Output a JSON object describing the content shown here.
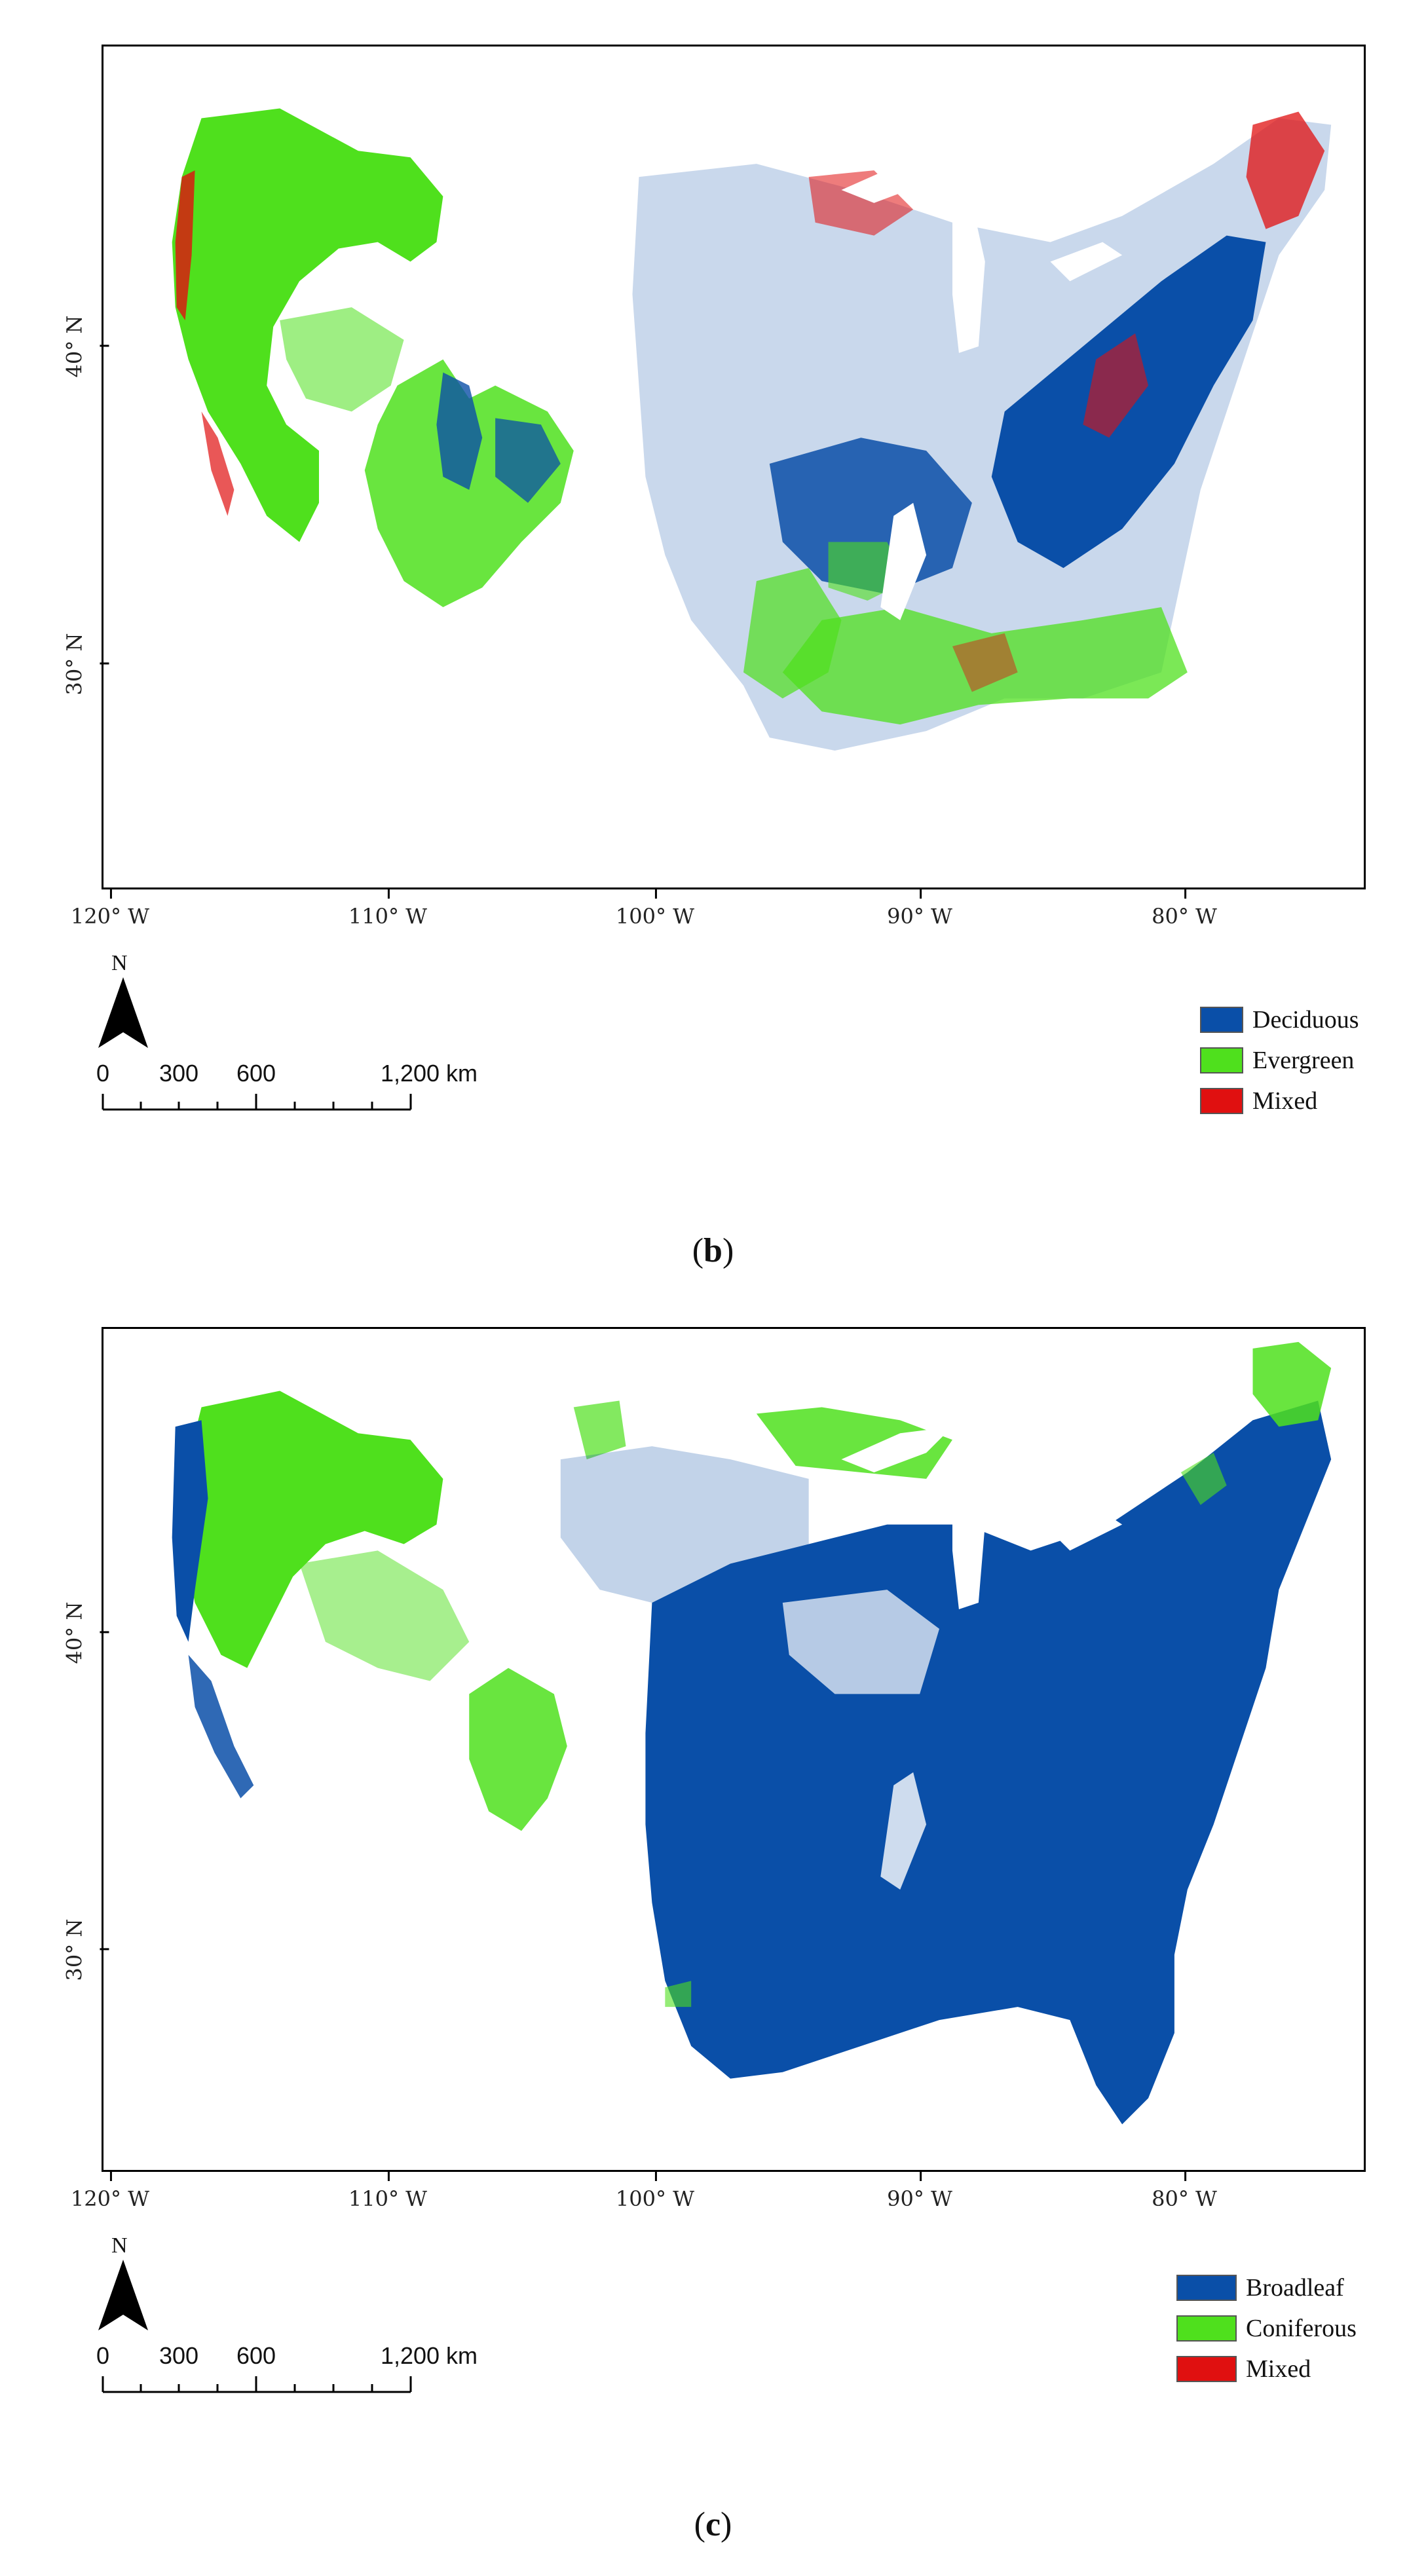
{
  "colors": {
    "deciduous": "#0a4fa8",
    "evergreen": "#4fe01d",
    "mixed": "#e01010",
    "broadleaf": "#0a4fa8",
    "coniferous": "#4fe01d"
  },
  "panels": [
    {
      "id": "b",
      "caption_open": "(",
      "caption_letter": "b",
      "caption_close": ")",
      "x_ticks": [
        "120° W",
        "110° W",
        "100° W",
        "90° W",
        "80° W"
      ],
      "y_ticks": [
        "40° N",
        "30° N"
      ],
      "north_label": "N",
      "scale_labels": [
        "0",
        "300",
        "600",
        "1,200 km"
      ],
      "legend": [
        {
          "label": "Deciduous",
          "color_key": "deciduous"
        },
        {
          "label": "Evergreen",
          "color_key": "evergreen"
        },
        {
          "label": "Mixed",
          "color_key": "mixed"
        }
      ]
    },
    {
      "id": "c",
      "caption_open": "(",
      "caption_letter": "c",
      "caption_close": ")",
      "x_ticks": [
        "120° W",
        "110° W",
        "100° W",
        "90° W",
        "80° W"
      ],
      "y_ticks": [
        "40° N",
        "30° N"
      ],
      "north_label": "N",
      "scale_labels": [
        "0",
        "300",
        "600",
        "1,200 km"
      ],
      "legend": [
        {
          "label": "Broadleaf",
          "color_key": "broadleaf"
        },
        {
          "label": "Coniferous",
          "color_key": "coniferous"
        },
        {
          "label": "Mixed",
          "color_key": "mixed"
        }
      ]
    }
  ]
}
